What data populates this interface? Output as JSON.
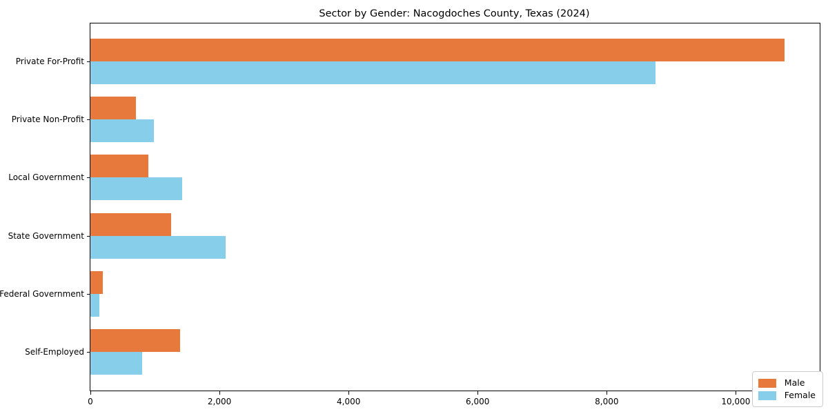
{
  "title": "Sector by Gender: Nacogdoches County, Texas (2024)",
  "colors": {
    "male": "#e8793d",
    "female": "#87ceeb",
    "axis": "#000000",
    "legend_border": "#cccccc",
    "background": "#ffffff"
  },
  "chart_data": {
    "type": "bar",
    "orientation": "horizontal",
    "title": "Sector by Gender: Nacogdoches County, Texas (2024)",
    "categories": [
      "Private For-Profit",
      "Private Non-Profit",
      "Local Government",
      "State Government",
      "Federal Government",
      "Self-Employed"
    ],
    "series": [
      {
        "name": "Male",
        "color": "#e8793d",
        "values": [
          10750,
          700,
          900,
          1250,
          190,
          1390
        ]
      },
      {
        "name": "Female",
        "color": "#87ceeb",
        "values": [
          8750,
          980,
          1420,
          2100,
          135,
          800
        ]
      }
    ],
    "xlabel": "",
    "ylabel": "",
    "xlim": [
      0,
      11300
    ],
    "xticks": [
      0,
      2000,
      4000,
      6000,
      8000,
      10000
    ],
    "xtick_labels": [
      "0",
      "2,000",
      "4,000",
      "6,000",
      "8,000",
      "10,000"
    ],
    "grid": false,
    "legend_position": "lower right",
    "legend_entries": [
      "Male",
      "Female"
    ]
  }
}
